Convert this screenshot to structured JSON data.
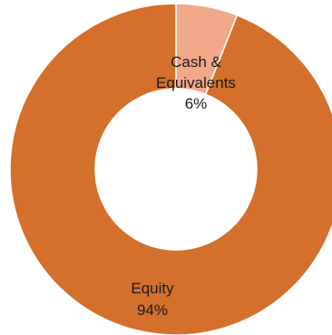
{
  "chart_data": {
    "type": "pie",
    "donut": true,
    "title": "",
    "slices": [
      {
        "label_lines": [
          "Cash &",
          "Equivalents"
        ],
        "value": 6,
        "value_label": "6%",
        "color": "#f2a98a"
      },
      {
        "label_lines": [
          "Equity"
        ],
        "value": 94,
        "value_label": "94%",
        "color": "#d4702c"
      }
    ],
    "start_angle_deg": 0,
    "direction": "clockwise",
    "legend": "none"
  }
}
